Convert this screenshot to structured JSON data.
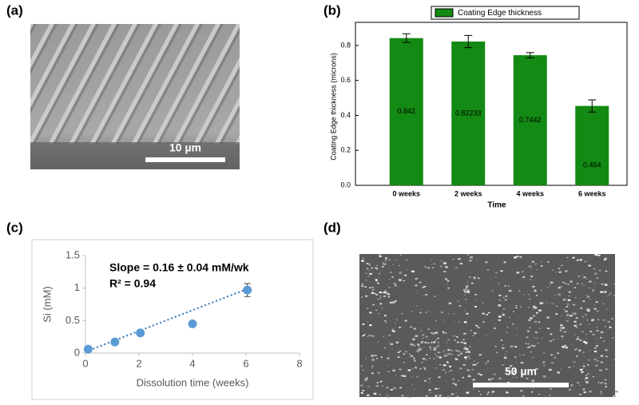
{
  "panels": {
    "labels": [
      "(a)",
      "(b)",
      "(c)",
      "(d)"
    ],
    "scale_bars": [
      "10 µm",
      "50 µm"
    ]
  },
  "chart_data": [
    {
      "type": "bar",
      "y_label": "Coating Edge thickness (microns)",
      "x_label": "Time",
      "categories": [
        "0 weeks",
        "2 weeks",
        "4 weeks",
        "6 weeks"
      ],
      "series": [
        {
          "name": "Coating Edge thickness",
          "color": "#138a13",
          "values": [
            0.842,
            0.82233,
            0.7442,
            0.454
          ],
          "errors": [
            0.025,
            0.035,
            0.015,
            0.035
          ]
        }
      ],
      "ylim": [
        0,
        0.9
      ],
      "yticks": [
        {
          "value": 0,
          "label": "0.0"
        },
        0.2,
        0.4,
        0.6,
        0.8
      ]
    },
    {
      "type": "scatter",
      "y_label": "Si (mM)",
      "x_label": "Dissolution time (weeks)",
      "annotations": [
        "Slope = 0.16 ± 0.04 mM/wk",
        "R² = 0.94"
      ],
      "x": [
        0.1,
        1.1,
        2.05,
        4,
        6.05
      ],
      "series": [
        {
          "color": "#5b9bd5",
          "values": [
            0.06,
            0.17,
            0.31,
            0.45,
            0.97
          ],
          "errors": [
            0.02,
            0.02,
            0.02,
            0.03,
            0.1
          ]
        }
      ],
      "trendline": {
        "x": [
          0,
          6
        ],
        "values": [
          0.02,
          0.98
        ],
        "color": "#2e75b6"
      },
      "xlim": [
        0,
        8
      ],
      "xticks": [
        0,
        2,
        4,
        6,
        8
      ],
      "ylim": [
        0,
        1.5
      ],
      "yticks": [
        0,
        0.5,
        1,
        1.5
      ]
    }
  ]
}
